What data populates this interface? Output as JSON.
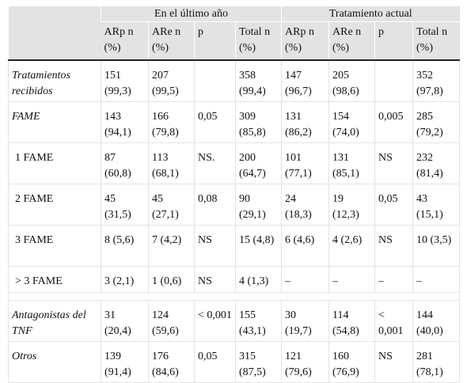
{
  "header": {
    "group1": "En el último año",
    "group2": "Tratamiento actual",
    "cols": [
      {
        "l1": "ARp n",
        "l2": "(%)"
      },
      {
        "l1": "ARe n",
        "l2": "(%)"
      },
      {
        "l1": "p",
        "l2": ""
      },
      {
        "l1": "Total n",
        "l2": "(%)"
      },
      {
        "l1": "ARp n",
        "l2": "(%)"
      },
      {
        "l1": "ARe n",
        "l2": "(%)"
      },
      {
        "l1": "p",
        "l2": ""
      },
      {
        "l1": "Total n",
        "l2": "(%)"
      }
    ]
  },
  "rows": [
    {
      "label": "Tratamientos recibidos",
      "cells": [
        "151 (99,3)",
        "207 (99,5)",
        "",
        "358 (99,4)",
        "147 (96,7)",
        "205 (98,6)",
        "",
        "352 (97,8)"
      ]
    },
    {
      "label": "FAME",
      "cells": [
        "143 (94,1)",
        "166 (79,8)",
        "0,05",
        "309 (85,8)",
        "131 (86,2)",
        "154 (74,0)",
        "0,005",
        "285 (79,2)"
      ]
    },
    {
      "label": "1 FAME",
      "cells": [
        "87 (60,8)",
        "113 (68,1)",
        "NS.",
        "200 (64,7)",
        "101 (77,1)",
        "131 (85,1)",
        "NS",
        "232 (81,4)"
      ]
    },
    {
      "label": "2 FAME",
      "cells": [
        "45 (31,5)",
        "45 (27,1)",
        "0,08",
        "90 (29,1)",
        "24 (18,3)",
        "19 (12,3)",
        "0,05",
        "43 (15,1)"
      ]
    },
    {
      "label": "3 FAME",
      "cells": [
        "8 (5,6)",
        "7 (4,2)",
        "NS",
        "15 (4,8)",
        "6 (4,6)",
        "4 (2,6)",
        "NS",
        "10 (3,5)"
      ]
    },
    {
      "label": "> 3 FAME",
      "cells": [
        "3 (2,1)",
        "1 (0,6)",
        "NS",
        "4 (1,3)",
        "–",
        "–",
        "–",
        "–"
      ]
    },
    {
      "label": "Antagonistas del TNF",
      "cells": [
        "31 (20,4)",
        "124 (59,6)",
        "< 0,001",
        "155 (43,1)",
        "30 (19,7)",
        "114 (54,8)",
        "< 0,001",
        "144 (40,0)"
      ]
    },
    {
      "label": "Otros",
      "cells": [
        "139 (91,4)",
        "176 (84,6)",
        "0,05",
        "315 (87,5)",
        "121 (79,6)",
        "160 (76,9)",
        "NS",
        "281 (78,1)"
      ]
    }
  ]
}
